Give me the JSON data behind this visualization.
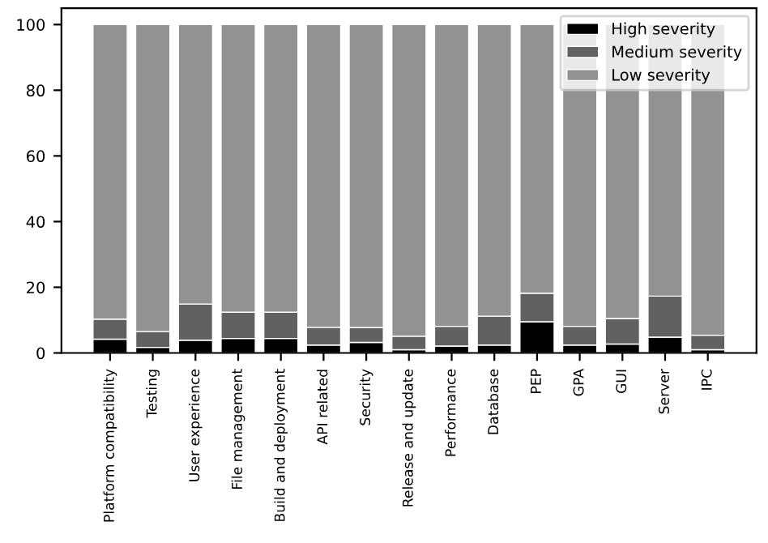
{
  "chart_data": {
    "type": "bar",
    "stacked": true,
    "categories": [
      "Platform compatibility",
      "Testing",
      "User experience",
      "File management",
      "Build and deployment",
      "API related",
      "Security",
      "Release and update",
      "Performance",
      "Database",
      "PEP",
      "GPA",
      "GUI",
      "Server",
      "IPC"
    ],
    "series": [
      {
        "name": "High severity",
        "color": "#000000",
        "values": [
          4.2,
          1.7,
          3.9,
          4.4,
          4.4,
          2.4,
          3.2,
          1.0,
          2.1,
          2.4,
          9.5,
          2.4,
          2.7,
          4.8,
          1.0
        ]
      },
      {
        "name": "Medium severity",
        "color": "#616161",
        "values": [
          6.1,
          4.8,
          11.0,
          8.0,
          8.0,
          5.4,
          4.5,
          4.1,
          6.0,
          8.8,
          8.7,
          5.7,
          7.8,
          12.5,
          4.4
        ]
      },
      {
        "name": "Low severity",
        "color": "#929292",
        "values": [
          89.7,
          93.5,
          85.1,
          87.6,
          87.6,
          92.2,
          92.3,
          94.9,
          91.9,
          88.8,
          81.8,
          91.9,
          89.5,
          82.7,
          94.6
        ]
      }
    ],
    "ylim": [
      0,
      105
    ],
    "yticks": [
      0,
      20,
      40,
      60,
      80,
      100
    ],
    "grid": false,
    "legend": "top right"
  }
}
